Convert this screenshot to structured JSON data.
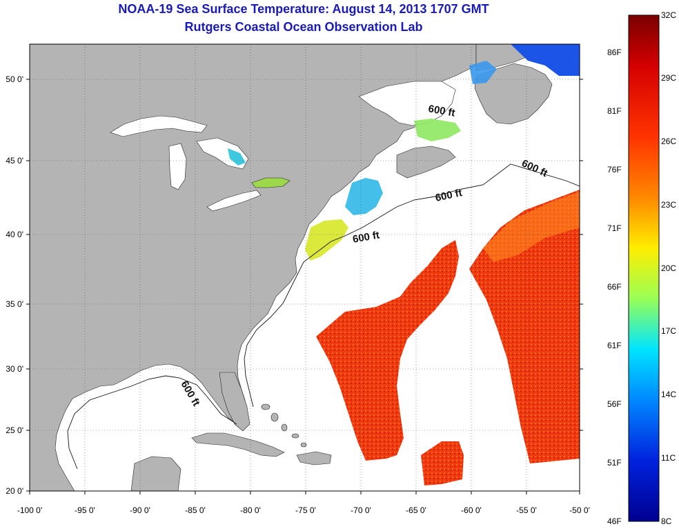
{
  "title_line1": "NOAA-19 Sea Surface Temperature:  August 14, 2013 1707 GMT",
  "title_line2": "Rutgers Coastal Ocean Observation Lab",
  "map": {
    "x_ticks": [
      "-100 0'",
      "-95 0'",
      "-90 0'",
      "-85 0'",
      "-80 0'",
      "-75 0'",
      "-70 0'",
      "-65 0'",
      "-60 0'",
      "-55 0'",
      "-50 0'"
    ],
    "y_ticks": [
      "50 0'",
      "45 0'",
      "40 0'",
      "35 0'",
      "30 0'",
      "25 0'",
      "20 0'"
    ],
    "contour_label": "600 ft",
    "land_color": "#b4b4b4",
    "ocean_color": "#ffffff"
  },
  "colorbar": {
    "celsius_labels": [
      "32C",
      "29C",
      "26C",
      "23C",
      "20C",
      "17C",
      "14C",
      "11C",
      "8C"
    ],
    "fahrenheit_labels": [
      "86F",
      "81F",
      "76F",
      "71F",
      "66F",
      "61F",
      "56F",
      "51F",
      "46F"
    ],
    "colors": [
      "#7a0000",
      "#d40000",
      "#ff3300",
      "#ff8800",
      "#ffdd00",
      "#99ff55",
      "#00e5ff",
      "#0088ff",
      "#0022dd",
      "#000090"
    ]
  }
}
